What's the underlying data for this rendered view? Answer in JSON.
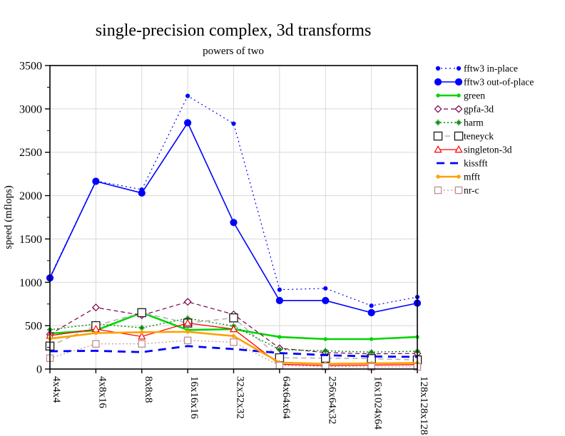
{
  "page": {
    "background": "#ffffff"
  },
  "chart_data": {
    "type": "line",
    "title": "single-precision complex, 3d transforms",
    "subtitle": "powers of two",
    "xlabel": "",
    "ylabel": "speed (mflops)",
    "ylim": [
      0,
      3500
    ],
    "ytick_interval": 500,
    "yminor_interval": 250,
    "grid": true,
    "grid_color": "#d8d8d8",
    "frame_color": "#000000",
    "legend_position": "right",
    "categories": [
      "4x4x4",
      "4x8x16",
      "8x8x8",
      "16x16x16",
      "32x32x32",
      "64x64x64",
      "256x64x32",
      "16x1024x64",
      "128x128x128"
    ],
    "series": [
      {
        "name": "fftw3 in-place",
        "color": "#0000ff",
        "line": "dotted",
        "dash": "2,4",
        "width": 1.2,
        "marker": "circle",
        "marker_fill": "solid",
        "marker_size": 2.6,
        "values": [
          1060,
          2170,
          2070,
          3150,
          2830,
          915,
          930,
          730,
          830
        ]
      },
      {
        "name": "fftw3 out-of-place",
        "color": "#0000ff",
        "line": "solid",
        "dash": "",
        "width": 1.6,
        "marker": "circle",
        "marker_fill": "solid",
        "marker_size": 4.6,
        "values": [
          1050,
          2165,
          2030,
          2840,
          1690,
          790,
          790,
          650,
          760
        ]
      },
      {
        "name": "green",
        "color": "#00d500",
        "line": "solid",
        "dash": "",
        "width": 2.6,
        "marker": "circle",
        "marker_fill": "solid",
        "marker_size": 2.2,
        "values": [
          410,
          445,
          650,
          450,
          460,
          370,
          345,
          345,
          370
        ]
      },
      {
        "name": "gpfa-3d",
        "color": "#78004b",
        "line": "dashed",
        "dash": "6,4",
        "width": 1.2,
        "marker": "diamond",
        "marker_fill": "open",
        "marker_size": 4.6,
        "values": [
          400,
          710,
          620,
          775,
          630,
          240,
          190,
          175,
          180
        ]
      },
      {
        "name": "harm",
        "color": "#008c00",
        "line": "dotted",
        "dash": "2,3",
        "width": 1.4,
        "marker": "star",
        "marker_fill": "open",
        "marker_size": 4.2,
        "values": [
          455,
          520,
          475,
          585,
          495,
          225,
          210,
          195,
          205
        ]
      },
      {
        "name": "teneyck",
        "color": "#b4b4b4",
        "line": "dashed",
        "dash": "7,5",
        "width": 1.6,
        "marker": "square",
        "marker_fill": "open",
        "marker_size": 5.6,
        "marker_color": "#1a1a1a",
        "values": [
          265,
          500,
          650,
          530,
          590,
          130,
          125,
          120,
          105
        ]
      },
      {
        "name": "singleton-3d",
        "color": "#ff0000",
        "line": "solid",
        "dash": "",
        "width": 1.3,
        "marker": "triangle",
        "marker_fill": "open",
        "marker_size": 4.8,
        "values": [
          385,
          460,
          375,
          530,
          460,
          55,
          40,
          45,
          50
        ]
      },
      {
        "name": "kissfft",
        "color": "#0000ff",
        "line": "dashed",
        "dash": "11,8",
        "width": 2.8,
        "marker": "none",
        "marker_fill": "none",
        "marker_size": 0,
        "values": [
          205,
          210,
          195,
          265,
          230,
          185,
          160,
          145,
          140
        ]
      },
      {
        "name": "mfft",
        "color": "#ffa000",
        "line": "solid",
        "dash": "",
        "width": 2.6,
        "marker": "circle",
        "marker_fill": "solid",
        "marker_size": 2.2,
        "values": [
          350,
          415,
          425,
          430,
          380,
          75,
          60,
          65,
          70
        ]
      },
      {
        "name": "nr-c",
        "color": "#c08f8f",
        "line": "dotted",
        "dash": "2,3",
        "width": 1.2,
        "marker": "square",
        "marker_fill": "open",
        "marker_size": 4.6,
        "values": [
          125,
          290,
          290,
          330,
          310,
          40,
          30,
          25,
          25
        ]
      }
    ]
  }
}
